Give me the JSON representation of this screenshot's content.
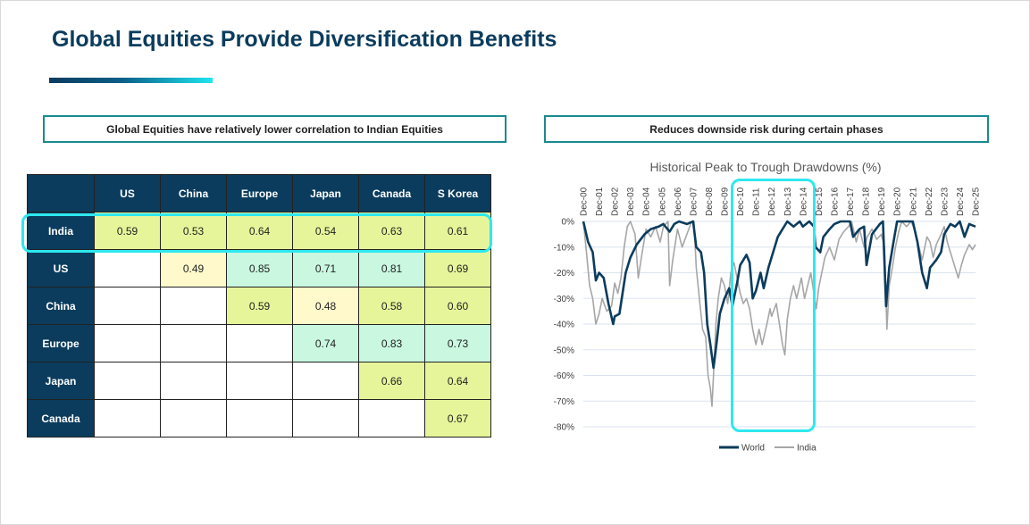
{
  "page": {
    "title": "Global Equities Provide Diversification Benefits"
  },
  "left_section": {
    "heading": "Global Equities have relatively lower correlation to Indian Equities",
    "table": {
      "columns": [
        "US",
        "China",
        "Europe",
        "Japan",
        "Canada",
        "S Korea"
      ],
      "rows": [
        {
          "label": "India",
          "cells": [
            "0.59",
            "0.53",
            "0.64",
            "0.54",
            "0.63",
            "0.61"
          ]
        },
        {
          "label": "US",
          "cells": [
            "",
            "0.49",
            "0.85",
            "0.71",
            "0.81",
            "0.69"
          ]
        },
        {
          "label": "China",
          "cells": [
            "",
            "",
            "0.59",
            "0.48",
            "0.58",
            "0.60"
          ]
        },
        {
          "label": "Europe",
          "cells": [
            "",
            "",
            "",
            "0.74",
            "0.83",
            "0.73"
          ]
        },
        {
          "label": "Japan",
          "cells": [
            "",
            "",
            "",
            "",
            "0.66",
            "0.64"
          ]
        },
        {
          "label": "Canada",
          "cells": [
            "",
            "",
            "",
            "",
            "",
            "0.67"
          ]
        }
      ],
      "highlighted_row": "India",
      "colors": {
        "header": "#0b3c5d",
        "lime": "#e6f59a",
        "mint": "#c9f7e0",
        "cream": "#fff9cc",
        "highlight": "#2ee8ef"
      }
    }
  },
  "right_section": {
    "heading": "Reduces downside risk during certain phases"
  },
  "chart_data": {
    "type": "line",
    "title": "Historical Peak to Trough Drawdowns (%)",
    "xlabel": "",
    "ylabel": "",
    "x_ticks": [
      "Dec-00",
      "Dec-01",
      "Dec-02",
      "Dec-03",
      "Dec-04",
      "Dec-05",
      "Dec-06",
      "Dec-07",
      "Dec-08",
      "Dec-09",
      "Dec-10",
      "Dec-11",
      "Dec-12",
      "Dec-13",
      "Dec-14",
      "Dec-15",
      "Dec-16",
      "Dec-17",
      "Dec-18",
      "Dec-19",
      "Dec-20",
      "Dec-21",
      "Dec-22",
      "Dec-23",
      "Dec-24",
      "Dec-25"
    ],
    "y_ticks": [
      "0%",
      "-10%",
      "-20%",
      "-30%",
      "-40%",
      "-50%",
      "-60%",
      "-70%",
      "-80%"
    ],
    "ylim": [
      -80,
      0
    ],
    "grid": true,
    "legend": "bottom",
    "highlight_range": [
      "Dec-10",
      "Dec-14"
    ],
    "series": [
      {
        "name": "World",
        "color": "#0b3c5d",
        "points": [
          [
            2000.9,
            0
          ],
          [
            2001.2,
            -8
          ],
          [
            2001.5,
            -12
          ],
          [
            2001.7,
            -23
          ],
          [
            2001.9,
            -20
          ],
          [
            2002.2,
            -22
          ],
          [
            2002.5,
            -32
          ],
          [
            2002.8,
            -40
          ],
          [
            2002.9,
            -37
          ],
          [
            2003.2,
            -36
          ],
          [
            2003.6,
            -20
          ],
          [
            2003.9,
            -14
          ],
          [
            2004.3,
            -9
          ],
          [
            2004.8,
            -5
          ],
          [
            2005.2,
            -3
          ],
          [
            2005.7,
            -2
          ],
          [
            2006.0,
            -1
          ],
          [
            2006.4,
            -4
          ],
          [
            2006.7,
            -1
          ],
          [
            2007.0,
            0
          ],
          [
            2007.5,
            -1
          ],
          [
            2007.9,
            0
          ],
          [
            2008.1,
            -10
          ],
          [
            2008.4,
            -12
          ],
          [
            2008.6,
            -20
          ],
          [
            2008.8,
            -40
          ],
          [
            2009.0,
            -48
          ],
          [
            2009.2,
            -57
          ],
          [
            2009.4,
            -47
          ],
          [
            2009.6,
            -36
          ],
          [
            2009.9,
            -30
          ],
          [
            2010.2,
            -26
          ],
          [
            2010.4,
            -33
          ],
          [
            2010.7,
            -24
          ],
          [
            2010.9,
            -17
          ],
          [
            2011.3,
            -13
          ],
          [
            2011.5,
            -16
          ],
          [
            2011.7,
            -30
          ],
          [
            2011.9,
            -27
          ],
          [
            2012.2,
            -20
          ],
          [
            2012.4,
            -26
          ],
          [
            2012.7,
            -18
          ],
          [
            2012.9,
            -14
          ],
          [
            2013.3,
            -6
          ],
          [
            2013.6,
            -3
          ],
          [
            2013.9,
            0
          ],
          [
            2014.3,
            -2
          ],
          [
            2014.7,
            0
          ],
          [
            2014.9,
            -2
          ],
          [
            2015.3,
            0
          ],
          [
            2015.6,
            -2
          ],
          [
            2015.7,
            -10
          ],
          [
            2016.0,
            -12
          ],
          [
            2016.2,
            -6
          ],
          [
            2016.6,
            -3
          ],
          [
            2016.9,
            -1
          ],
          [
            2017.3,
            0
          ],
          [
            2017.9,
            0
          ],
          [
            2018.1,
            -6
          ],
          [
            2018.5,
            -3
          ],
          [
            2018.8,
            -2
          ],
          [
            2018.95,
            -17
          ],
          [
            2019.3,
            -5
          ],
          [
            2019.8,
            -1
          ],
          [
            2020.0,
            0
          ],
          [
            2020.2,
            -33
          ],
          [
            2020.4,
            -18
          ],
          [
            2020.7,
            -7
          ],
          [
            2020.9,
            0
          ],
          [
            2021.5,
            0
          ],
          [
            2021.9,
            0
          ],
          [
            2022.2,
            -8
          ],
          [
            2022.5,
            -20
          ],
          [
            2022.8,
            -26
          ],
          [
            2023.0,
            -18
          ],
          [
            2023.4,
            -15
          ],
          [
            2023.7,
            -12
          ],
          [
            2023.9,
            -5
          ],
          [
            2024.3,
            -1
          ],
          [
            2024.6,
            -2
          ],
          [
            2024.9,
            0
          ],
          [
            2025.2,
            -6
          ],
          [
            2025.5,
            -1
          ],
          [
            2025.9,
            -2
          ]
        ]
      },
      {
        "name": "India",
        "color": "#a6a6a6",
        "points": [
          [
            2000.9,
            0
          ],
          [
            2001.1,
            -12
          ],
          [
            2001.3,
            -25
          ],
          [
            2001.5,
            -30
          ],
          [
            2001.7,
            -40
          ],
          [
            2001.9,
            -36
          ],
          [
            2002.1,
            -30
          ],
          [
            2002.4,
            -35
          ],
          [
            2002.7,
            -33
          ],
          [
            2002.9,
            -24
          ],
          [
            2003.1,
            -28
          ],
          [
            2003.3,
            -22
          ],
          [
            2003.5,
            -10
          ],
          [
            2003.7,
            -2
          ],
          [
            2003.9,
            0
          ],
          [
            2004.2,
            -5
          ],
          [
            2004.4,
            -22
          ],
          [
            2004.6,
            -14
          ],
          [
            2004.9,
            -3
          ],
          [
            2005.2,
            -6
          ],
          [
            2005.5,
            -2
          ],
          [
            2005.8,
            -8
          ],
          [
            2006.0,
            -2
          ],
          [
            2006.3,
            0
          ],
          [
            2006.4,
            -25
          ],
          [
            2006.6,
            -15
          ],
          [
            2006.9,
            -3
          ],
          [
            2007.2,
            -10
          ],
          [
            2007.5,
            -5
          ],
          [
            2007.8,
            0
          ],
          [
            2007.95,
            0
          ],
          [
            2008.1,
            -18
          ],
          [
            2008.3,
            -30
          ],
          [
            2008.5,
            -42
          ],
          [
            2008.7,
            -45
          ],
          [
            2008.85,
            -60
          ],
          [
            2009.0,
            -65
          ],
          [
            2009.1,
            -72
          ],
          [
            2009.2,
            -60
          ],
          [
            2009.35,
            -40
          ],
          [
            2009.5,
            -30
          ],
          [
            2009.7,
            -22
          ],
          [
            2009.9,
            -25
          ],
          [
            2010.1,
            -32
          ],
          [
            2010.3,
            -20
          ],
          [
            2010.5,
            -16
          ],
          [
            2010.7,
            -22
          ],
          [
            2010.9,
            -28
          ],
          [
            2011.1,
            -32
          ],
          [
            2011.3,
            -30
          ],
          [
            2011.5,
            -34
          ],
          [
            2011.7,
            -42
          ],
          [
            2011.9,
            -48
          ],
          [
            2012.1,
            -42
          ],
          [
            2012.3,
            -48
          ],
          [
            2012.6,
            -40
          ],
          [
            2012.8,
            -34
          ],
          [
            2012.9,
            -37
          ],
          [
            2013.2,
            -32
          ],
          [
            2013.4,
            -40
          ],
          [
            2013.6,
            -48
          ],
          [
            2013.75,
            -52
          ],
          [
            2013.9,
            -38
          ],
          [
            2014.1,
            -30
          ],
          [
            2014.3,
            -25
          ],
          [
            2014.5,
            -30
          ],
          [
            2014.8,
            -22
          ],
          [
            2015.0,
            -30
          ],
          [
            2015.2,
            -25
          ],
          [
            2015.4,
            -20
          ],
          [
            2015.6,
            -28
          ],
          [
            2015.75,
            -34
          ],
          [
            2015.9,
            -26
          ],
          [
            2016.1,
            -20
          ],
          [
            2016.3,
            -14
          ],
          [
            2016.6,
            -10
          ],
          [
            2016.9,
            -15
          ],
          [
            2017.2,
            -7
          ],
          [
            2017.5,
            -4
          ],
          [
            2017.8,
            -2
          ],
          [
            2018.0,
            0
          ],
          [
            2018.3,
            -8
          ],
          [
            2018.5,
            -3
          ],
          [
            2018.8,
            -10
          ],
          [
            2019.0,
            -6
          ],
          [
            2019.3,
            -3
          ],
          [
            2019.6,
            -7
          ],
          [
            2019.9,
            -5
          ],
          [
            2020.1,
            -10
          ],
          [
            2020.25,
            -42
          ],
          [
            2020.4,
            -25
          ],
          [
            2020.6,
            -18
          ],
          [
            2020.8,
            -10
          ],
          [
            2021.0,
            -4
          ],
          [
            2021.2,
            0
          ],
          [
            2021.5,
            -2
          ],
          [
            2021.8,
            0
          ],
          [
            2022.0,
            -3
          ],
          [
            2022.3,
            -10
          ],
          [
            2022.5,
            -15
          ],
          [
            2022.8,
            -6
          ],
          [
            2023.0,
            -8
          ],
          [
            2023.2,
            -14
          ],
          [
            2023.4,
            -9
          ],
          [
            2023.7,
            -5
          ],
          [
            2023.9,
            -2
          ],
          [
            2024.1,
            -8
          ],
          [
            2024.3,
            -12
          ],
          [
            2024.6,
            -18
          ],
          [
            2024.8,
            -22
          ],
          [
            2025.0,
            -17
          ],
          [
            2025.2,
            -13
          ],
          [
            2025.5,
            -9
          ],
          [
            2025.7,
            -11
          ],
          [
            2025.9,
            -9
          ]
        ]
      }
    ]
  }
}
